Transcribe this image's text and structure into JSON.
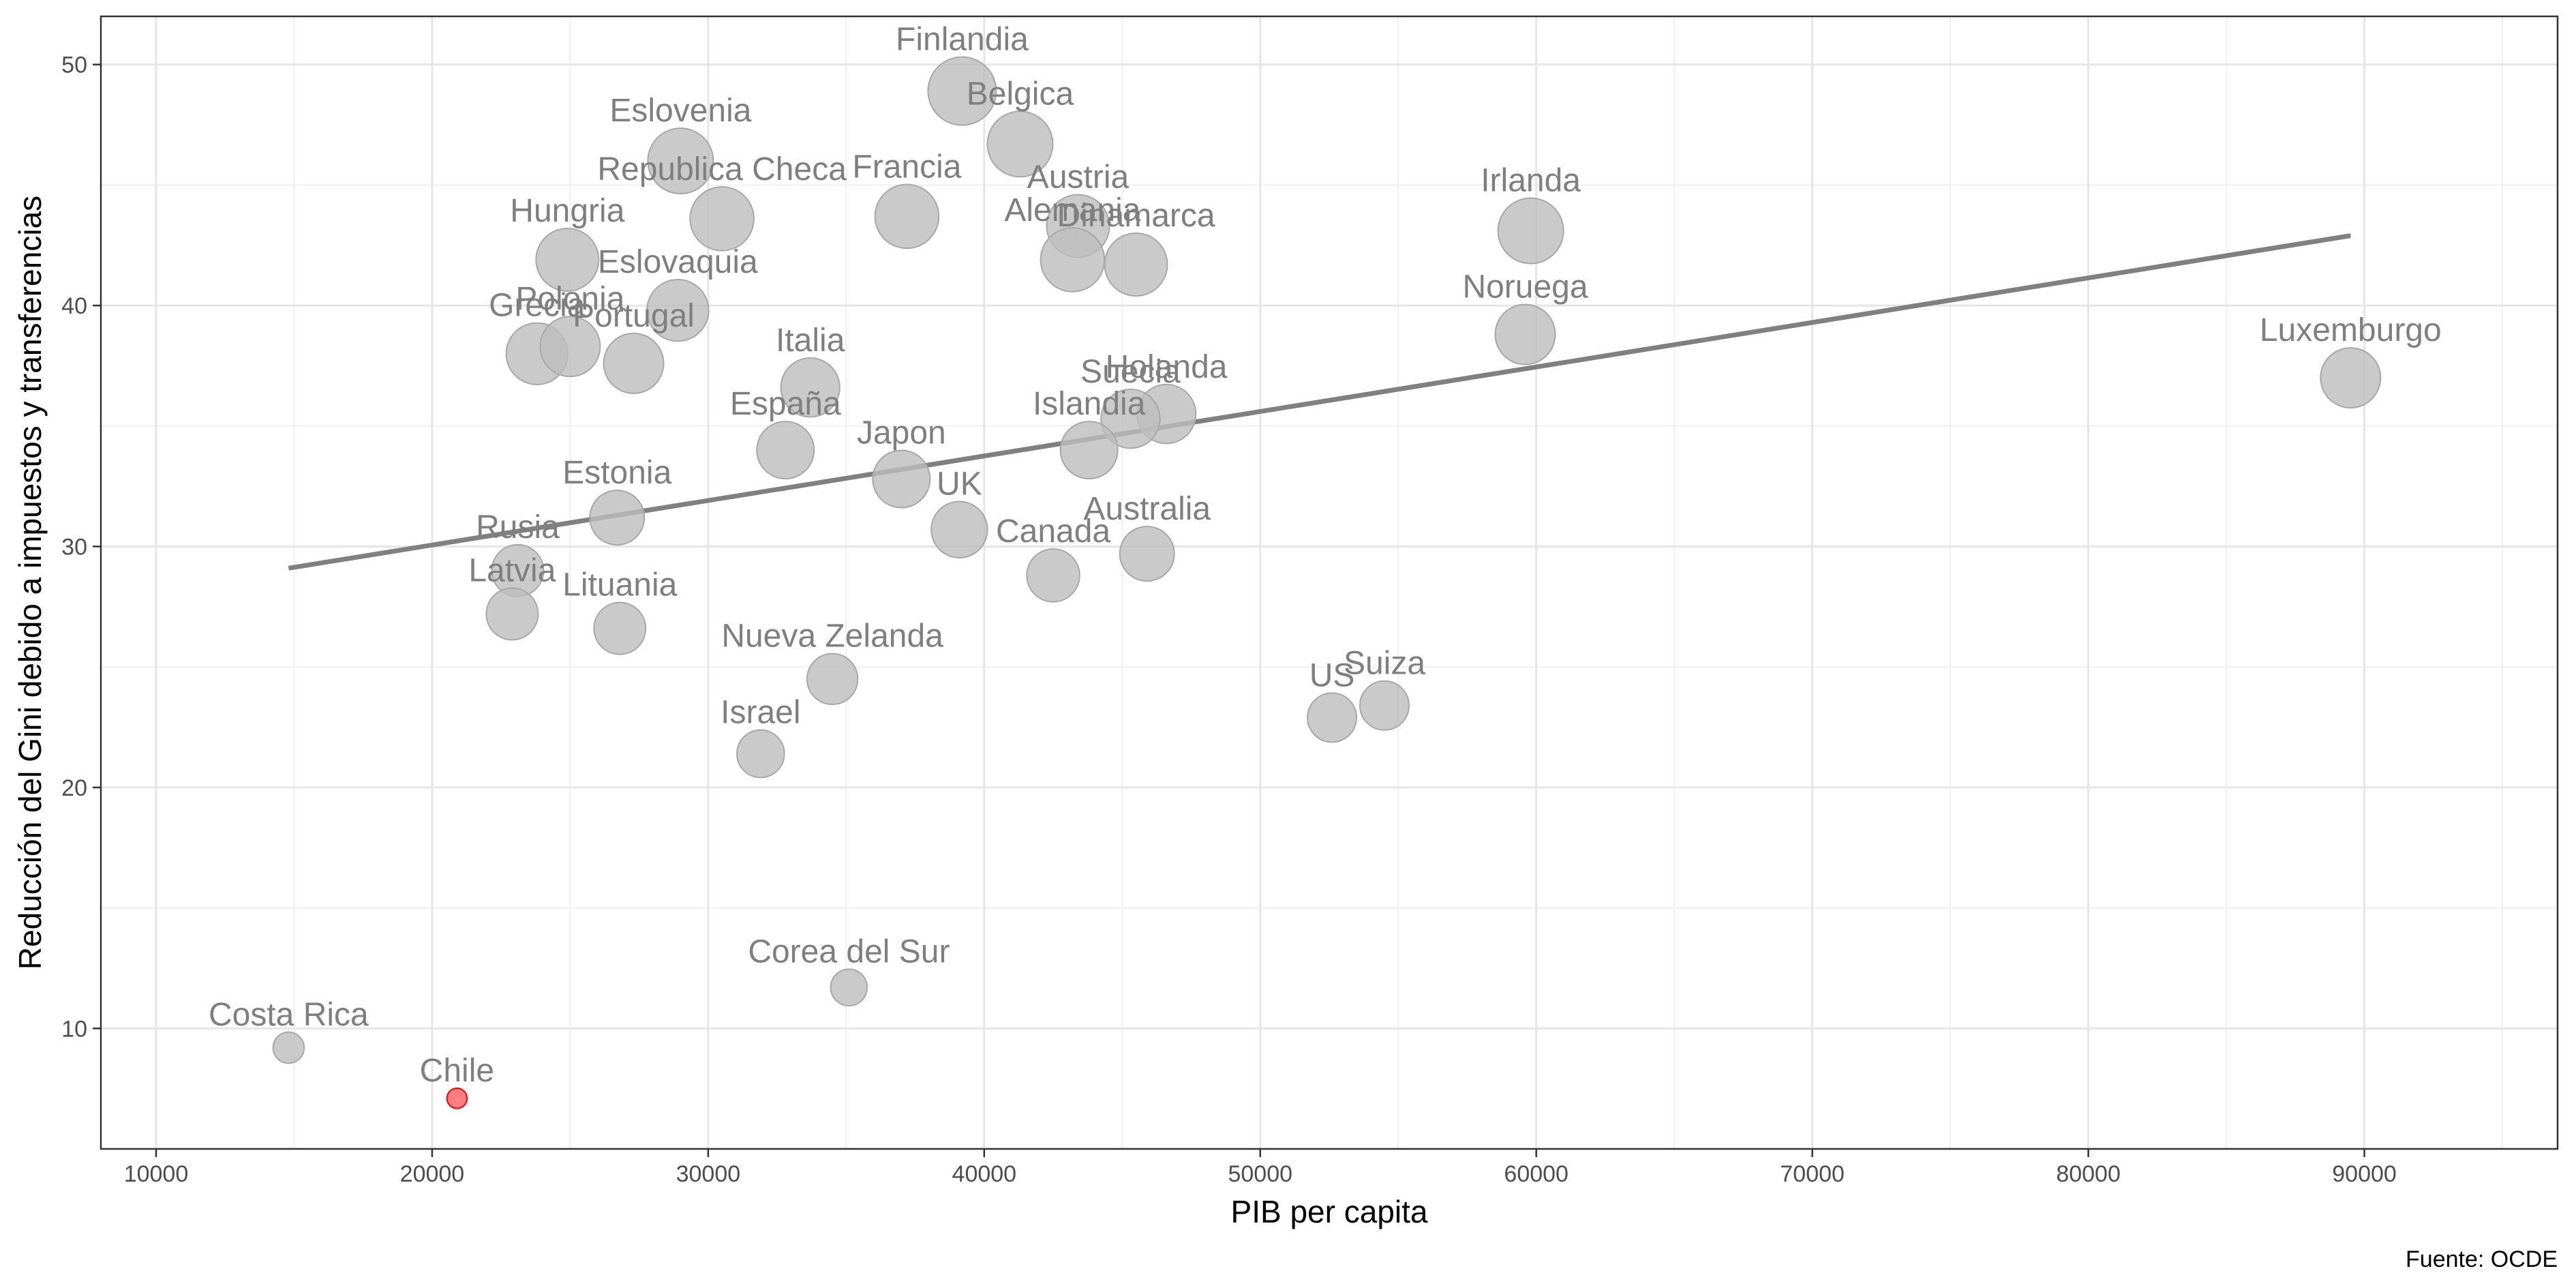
{
  "chart_data": {
    "type": "scatter",
    "title": "",
    "xlabel": "PIB per capita",
    "ylabel": "Reducción del Gini debido a impuestos y transferencias",
    "caption": "Fuente: OCDE",
    "xlim": [
      8000,
      97000
    ],
    "ylim": [
      5,
      52
    ],
    "xticks": [
      10000,
      20000,
      30000,
      40000,
      50000,
      60000,
      70000,
      80000,
      90000
    ],
    "yticks": [
      10,
      20,
      30,
      40,
      50
    ],
    "grid": true,
    "legend": "none",
    "trend_line": {
      "x": [
        14800,
        89500
      ],
      "y": [
        29.1,
        42.9
      ],
      "color": "#808080"
    },
    "colors": {
      "point": "#bdbdbd",
      "label": "#7f7f7f",
      "highlight": "#ff0000"
    },
    "points": [
      {
        "label": "Finlandia",
        "x": 39200,
        "y": 48.9,
        "size": 1.0
      },
      {
        "label": "Belgica",
        "x": 41300,
        "y": 46.7,
        "size": 0.95
      },
      {
        "label": "Eslovenia",
        "x": 29000,
        "y": 46.0,
        "size": 0.95
      },
      {
        "label": "Republica Checa",
        "x": 30500,
        "y": 43.6,
        "size": 0.92
      },
      {
        "label": "Francia",
        "x": 37200,
        "y": 43.7,
        "size": 0.92
      },
      {
        "label": "Austria",
        "x": 43400,
        "y": 43.3,
        "size": 0.9
      },
      {
        "label": "Irlanda",
        "x": 59800,
        "y": 43.1,
        "size": 0.95
      },
      {
        "label": "Hungria",
        "x": 24900,
        "y": 41.9,
        "size": 0.9
      },
      {
        "label": "Alemania",
        "x": 43200,
        "y": 41.9,
        "size": 0.92
      },
      {
        "label": "Dinamarca",
        "x": 45500,
        "y": 41.7,
        "size": 0.9
      },
      {
        "label": "Eslovaquia",
        "x": 28900,
        "y": 39.8,
        "size": 0.88
      },
      {
        "label": "Noruega",
        "x": 59600,
        "y": 38.8,
        "size": 0.85
      },
      {
        "label": "Grecia",
        "x": 23800,
        "y": 38.0,
        "size": 0.88
      },
      {
        "label": "Polonia",
        "x": 25000,
        "y": 38.3,
        "size": 0.85
      },
      {
        "label": "Portugal",
        "x": 27300,
        "y": 37.6,
        "size": 0.85
      },
      {
        "label": "Luxemburgo",
        "x": 89500,
        "y": 37.0,
        "size": 0.85
      },
      {
        "label": "Italia",
        "x": 33700,
        "y": 36.6,
        "size": 0.83
      },
      {
        "label": "Holanda",
        "x": 46600,
        "y": 35.5,
        "size": 0.83
      },
      {
        "label": "Suecia",
        "x": 45300,
        "y": 35.3,
        "size": 0.83
      },
      {
        "label": "Islandia",
        "x": 43800,
        "y": 34.0,
        "size": 0.8
      },
      {
        "label": "España",
        "x": 32800,
        "y": 34.0,
        "size": 0.8
      },
      {
        "label": "Japon",
        "x": 37000,
        "y": 32.8,
        "size": 0.8
      },
      {
        "label": "Estonia",
        "x": 26700,
        "y": 31.2,
        "size": 0.75
      },
      {
        "label": "UK",
        "x": 39100,
        "y": 30.7,
        "size": 0.78
      },
      {
        "label": "Australia",
        "x": 45900,
        "y": 29.7,
        "size": 0.75
      },
      {
        "label": "Rusia",
        "x": 23100,
        "y": 29.0,
        "size": 0.7
      },
      {
        "label": "Canada",
        "x": 42500,
        "y": 28.8,
        "size": 0.72
      },
      {
        "label": "Latvia",
        "x": 22900,
        "y": 27.2,
        "size": 0.7
      },
      {
        "label": "Lituania",
        "x": 26800,
        "y": 26.6,
        "size": 0.7
      },
      {
        "label": "Nueva Zelanda",
        "x": 34500,
        "y": 24.5,
        "size": 0.68
      },
      {
        "label": "Suiza",
        "x": 54500,
        "y": 23.4,
        "size": 0.65
      },
      {
        "label": "US",
        "x": 52600,
        "y": 22.9,
        "size": 0.65
      },
      {
        "label": "Israel",
        "x": 31900,
        "y": 21.4,
        "size": 0.62
      },
      {
        "label": "Corea del Sur",
        "x": 35100,
        "y": 11.7,
        "size": 0.42
      },
      {
        "label": "Costa Rica",
        "x": 14800,
        "y": 9.2,
        "size": 0.32
      },
      {
        "label": "Chile",
        "x": 20900,
        "y": 7.1,
        "size": 0.12,
        "highlight": true
      }
    ]
  }
}
